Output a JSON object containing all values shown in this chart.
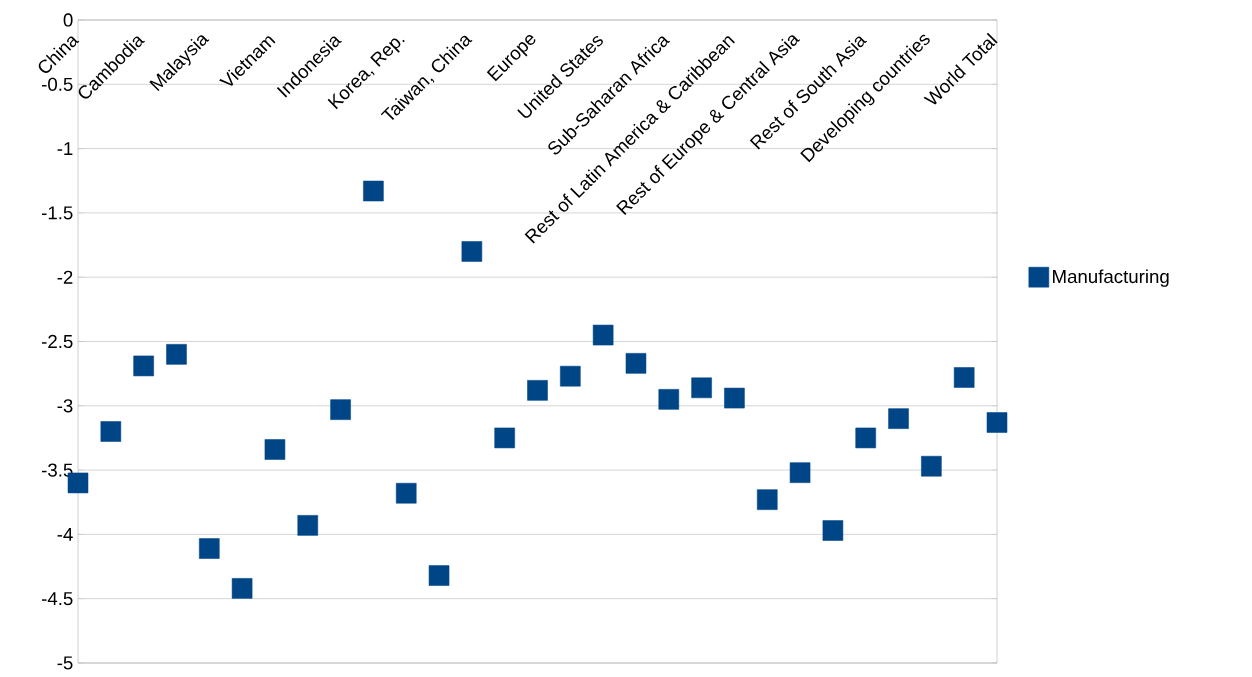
{
  "chart_data": {
    "type": "scatter",
    "categories": [
      "China",
      null,
      "Cambodia",
      null,
      "Malaysia",
      null,
      "Vietnam",
      null,
      "Indonesia",
      null,
      "Korea, Rep.",
      null,
      "Taiwan, China",
      null,
      "Europe",
      null,
      "United States",
      null,
      "Sub-Saharan Africa",
      null,
      "Rest of Latin America & Caribbean",
      null,
      "Rest of Europe & Central Asia",
      null,
      "Rest of South Asia",
      null,
      "Developing countries",
      null,
      "World Total"
    ],
    "series": [
      {
        "name": "Manufacturing",
        "color": "#004586",
        "values": [
          -3.6,
          -3.2,
          -2.69,
          -2.6,
          -4.11,
          -4.42,
          -3.34,
          -3.93,
          -3.03,
          -1.33,
          -3.68,
          -4.32,
          -1.8,
          -3.25,
          -2.88,
          -2.77,
          -2.45,
          -2.67,
          -2.95,
          -2.86,
          -2.94,
          -3.73,
          -3.52,
          -3.97,
          -3.25,
          -3.1,
          -3.47,
          -2.78,
          -3.13
        ]
      }
    ],
    "ylim": [
      -5,
      0
    ],
    "yticks": [
      0,
      -0.5,
      -1,
      -1.5,
      -2,
      -2.5,
      -3,
      -3.5,
      -4,
      -4.5,
      -5
    ],
    "grid": "y",
    "legend": "right",
    "marker": "square"
  }
}
